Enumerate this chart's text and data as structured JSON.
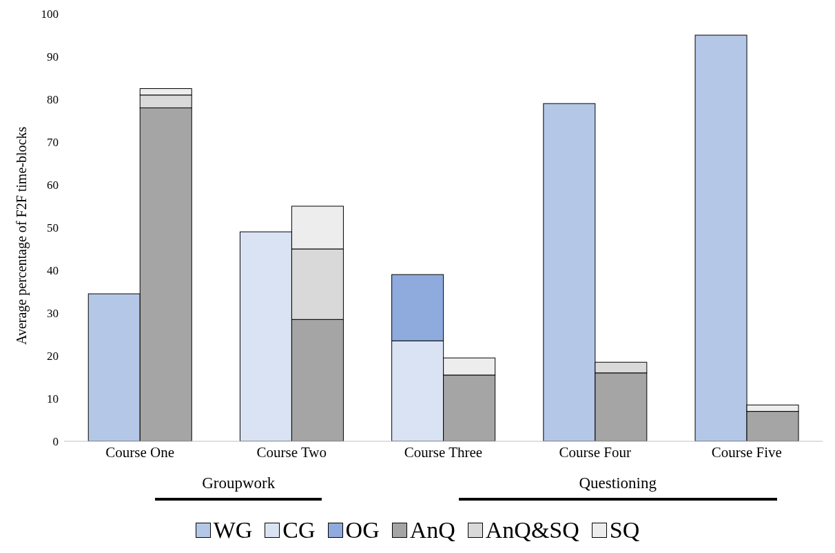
{
  "chart_data": {
    "type": "bar",
    "ylabel": "Average percentage of F2F time-blocks",
    "categories": [
      "Course One",
      "Course Two",
      "Course Three",
      "Course Four",
      "Course Five"
    ],
    "series": [
      {
        "name": "WG",
        "color": "#b4c7e7",
        "values": [
          34.5,
          null,
          null,
          79,
          95
        ],
        "base": [
          0,
          null,
          null,
          0,
          0
        ]
      },
      {
        "name": "CG",
        "color": "#dae3f3",
        "values": [
          null,
          49,
          23.5,
          null,
          null
        ],
        "base": [
          null,
          0,
          0,
          null,
          null
        ]
      },
      {
        "name": "OG",
        "color": "#8faadc",
        "values": [
          null,
          null,
          15.5,
          null,
          null
        ],
        "base": [
          null,
          null,
          23.5,
          null,
          null
        ]
      },
      {
        "name": "AnQ",
        "color": "#a5a5a5",
        "values": [
          78,
          28.5,
          15.5,
          16,
          7
        ],
        "base": [
          0,
          0,
          0,
          0,
          0
        ]
      },
      {
        "name": "AnQ&SQ",
        "color": "#d9d9d9",
        "values": [
          3,
          16.5,
          null,
          2.5,
          null
        ],
        "base": [
          78,
          28.5,
          null,
          16,
          null
        ]
      },
      {
        "name": "SQ",
        "color": "#ededed",
        "values": [
          1.5,
          10,
          4,
          null,
          1.5
        ],
        "base": [
          81,
          45,
          15.5,
          null,
          7
        ]
      }
    ],
    "ylim": [
      0,
      100
    ],
    "yticks": [
      0,
      10,
      20,
      30,
      40,
      50,
      60,
      70,
      80,
      90,
      100
    ],
    "legend": "bottom",
    "annotations": [
      "Groupwork",
      "Questioning"
    ]
  }
}
